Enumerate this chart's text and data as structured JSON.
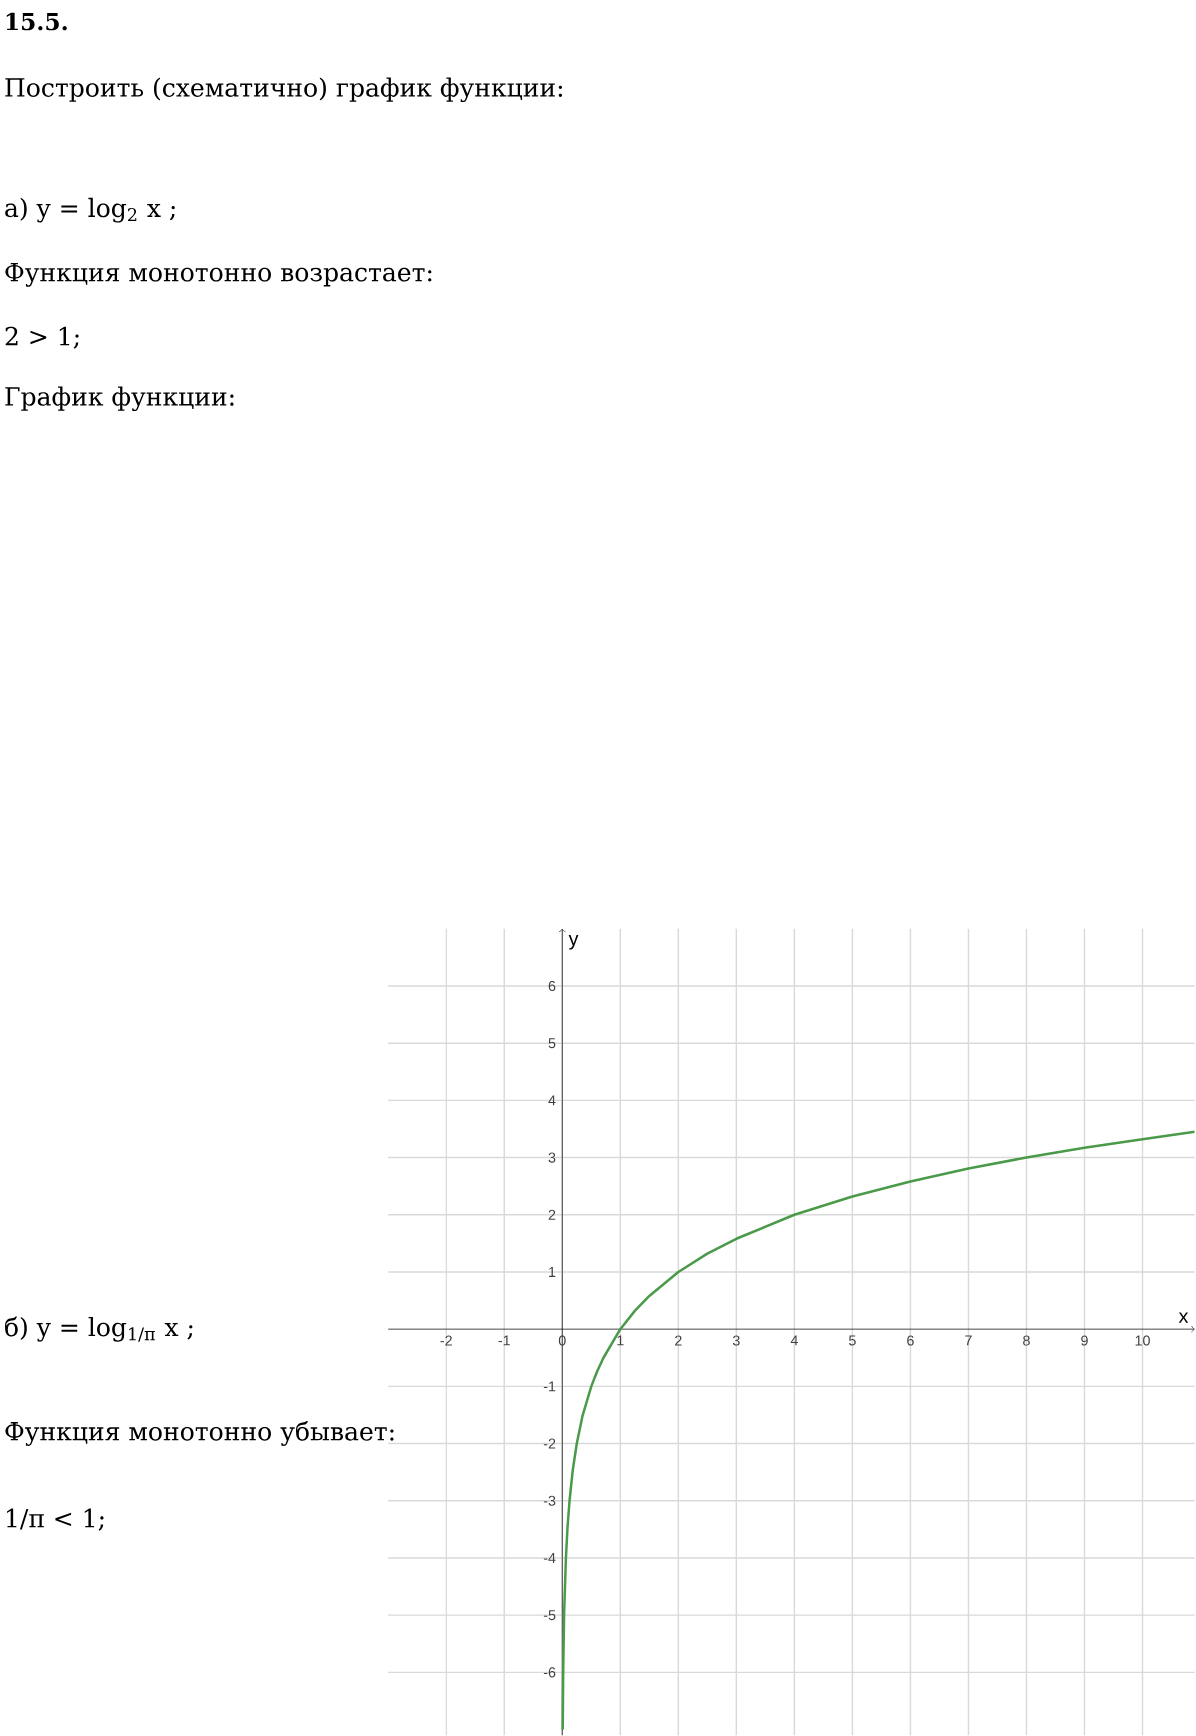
{
  "chart_data": {
    "type": "line",
    "title": "15.5.",
    "annotations": [
      "Построить (схематично) график функции:",
      "а) y = log$_{2}$ x ;",
      "Функция монотонно возрастает:",
      "2 > 1;",
      "График функции:",
      "б) y = log$_{1/π}$ x ;",
      "Функция монотонно убывает:",
      "1/π < 1;"
    ],
    "xlabel": "x",
    "ylabel": "y",
    "x": [
      0.008,
      0.0156,
      0.031,
      0.0625,
      0.09,
      0.125,
      0.18,
      0.25,
      0.35,
      0.5,
      0.6,
      0.71,
      1,
      1.25,
      1.5,
      2,
      2.5,
      3,
      4,
      5,
      6,
      7,
      8,
      9,
      10,
      10.9
    ],
    "series": [
      {
        "color": "#4a9a4a",
        "values": [
          -7,
          -6,
          -5,
          -4,
          -3.47,
          -3,
          -2.47,
          -2,
          -1.51,
          -1,
          -0.74,
          -0.5,
          0,
          0.32,
          0.58,
          1,
          1.32,
          1.58,
          2,
          2.32,
          2.58,
          2.81,
          3,
          3.17,
          3.32,
          3.45
        ]
      }
    ],
    "xlim": [
      -3,
      10.9
    ],
    "ylim": [
      -7.1,
      7.0
    ],
    "xticks": [
      -2,
      -1,
      0,
      1,
      2,
      3,
      4,
      5,
      6,
      7,
      8,
      9,
      10
    ],
    "yticks": [
      -6,
      -5,
      -4,
      -3,
      -2,
      -1,
      1,
      2,
      3,
      4,
      5,
      6
    ],
    "grid": true,
    "marker": "none",
    "line_style": "solid"
  }
}
